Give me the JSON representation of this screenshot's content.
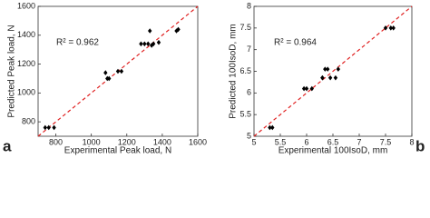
{
  "chart_data": [
    {
      "type": "scatter",
      "panel": "a",
      "xlabel": "Experimental Peak load, N",
      "ylabel": "Predicted Peak load, N",
      "annotation": "R² = 0.962",
      "x": [
        740,
        760,
        790,
        1080,
        1090,
        1100,
        1150,
        1170,
        1280,
        1300,
        1320,
        1330,
        1340,
        1350,
        1380,
        1480,
        1490
      ],
      "series": [
        {
          "name": "Peak load",
          "color": "#000000",
          "values": [
            760,
            760,
            760,
            1140,
            1100,
            1100,
            1150,
            1150,
            1340,
            1340,
            1340,
            1430,
            1330,
            1340,
            1350,
            1430,
            1440
          ]
        }
      ],
      "xlim": [
        700,
        1600
      ],
      "ylim": [
        700,
        1600
      ],
      "xticks": [
        800,
        1000,
        1200,
        1400,
        1600
      ],
      "yticks": [
        800,
        1000,
        1200,
        1400,
        1600
      ],
      "line_color": "#e02020"
    },
    {
      "type": "scatter",
      "panel": "b",
      "xlabel": "Experimental 100IsoD, mm",
      "ylabel": "Predicted 100IsoD, mm",
      "annotation": "R² = 0.964",
      "x": [
        5.3,
        5.35,
        5.95,
        6.0,
        6.1,
        6.3,
        6.35,
        6.4,
        6.3,
        6.45,
        6.55,
        6.6,
        7.5,
        7.6,
        7.65
      ],
      "series": [
        {
          "name": "100IsoD",
          "color": "#000000",
          "values": [
            5.2,
            5.2,
            6.1,
            6.1,
            6.1,
            6.35,
            6.55,
            6.55,
            6.35,
            6.35,
            6.35,
            6.55,
            7.5,
            7.5,
            7.5
          ]
        }
      ],
      "xlim": [
        5,
        8
      ],
      "ylim": [
        5,
        8
      ],
      "xticks": [
        5,
        5.5,
        6,
        6.5,
        7,
        7.5,
        8
      ],
      "yticks": [
        5,
        5.5,
        6,
        6.5,
        7,
        7.5,
        8
      ],
      "line_color": "#e02020"
    }
  ]
}
